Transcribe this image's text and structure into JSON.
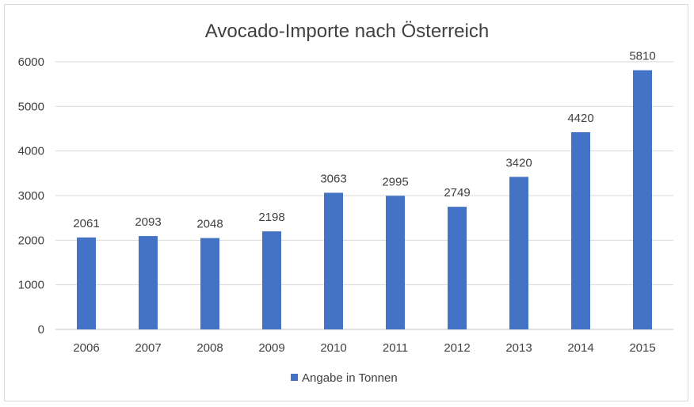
{
  "chart_data": {
    "type": "bar",
    "title": "Avocado-Importe nach Österreich",
    "xlabel": "",
    "ylabel": "",
    "categories": [
      "2006",
      "2007",
      "2008",
      "2009",
      "2010",
      "2011",
      "2012",
      "2013",
      "2014",
      "2015"
    ],
    "series": [
      {
        "name": "Angabe in Tonnen",
        "values": [
          2061,
          2093,
          2048,
          2198,
          3063,
          2995,
          2749,
          3420,
          4420,
          5810
        ],
        "color": "#4472c4"
      }
    ],
    "ylim": [
      0,
      6000
    ],
    "yticks": [
      0,
      1000,
      2000,
      3000,
      4000,
      5000,
      6000
    ],
    "grid": true,
    "legend_position": "bottom",
    "data_labels": true
  }
}
